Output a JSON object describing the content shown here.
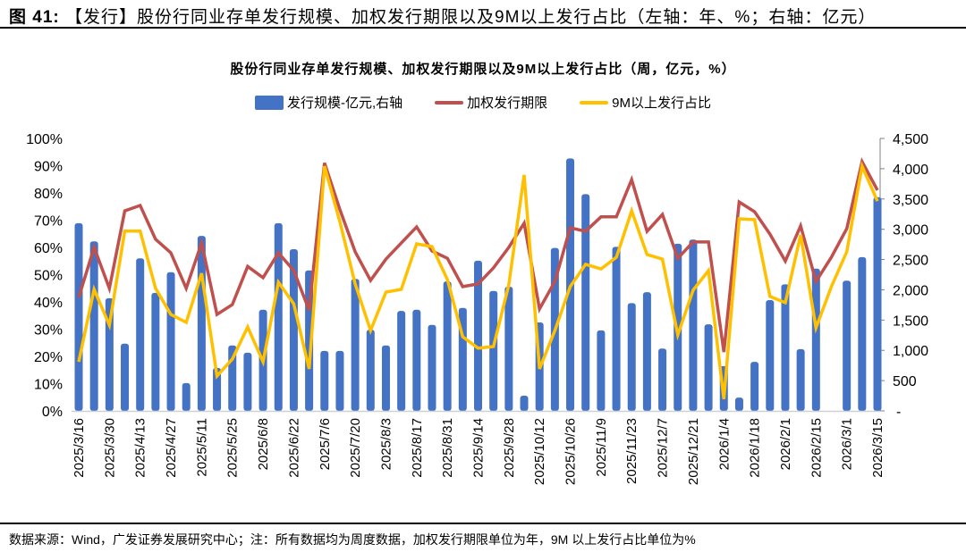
{
  "figure": {
    "number_label": "图 41:",
    "title": "【发行】股份行同业存单发行规模、加权发行期限以及9M以上发行占比（左轴：年、%；右轴：亿元）"
  },
  "source_note": "数据来源：Wind，广发证券发展研究中心；注：所有数据均为周度数据，加权发行期限单位为年，9M 以上发行占比单位为%",
  "chart_data": {
    "type": "bar+line",
    "title": "股份行同业存单发行规模、加权发行期限以及9M以上发行占比（周，亿元，%）",
    "legend_position": "top",
    "legend": [
      "发行规模-亿元,右轴",
      "加权发行期限",
      "9M以上发行占比"
    ],
    "colors": {
      "bars": "#4472C4",
      "red": "#C0504D",
      "yellow": "#FFC000"
    },
    "left_axis": {
      "ylim": [
        0,
        100
      ],
      "ticks": [
        "0%",
        "10%",
        "20%",
        "30%",
        "40%",
        "50%",
        "60%",
        "70%",
        "80%",
        "90%",
        "100%"
      ]
    },
    "right_axis": {
      "ylim": [
        0,
        4500
      ],
      "ticks": [
        "-",
        "500",
        "1,000",
        "1,500",
        "2,000",
        "2,500",
        "3,000",
        "3,500",
        "4,000",
        "4,500"
      ]
    },
    "x_tick_labels": [
      "2025/3/16",
      "2025/3/30",
      "2025/4/13",
      "2025/4/27",
      "2025/5/11",
      "2025/5/25",
      "2025/6/8",
      "2025/6/22",
      "2025/7/6",
      "2025/7/20",
      "2025/8/3",
      "2025/8/17",
      "2025/8/31",
      "2025/9/14",
      "2025/9/28",
      "2025/10/12",
      "2025/10/26",
      "2025/11/9",
      "2025/11/23",
      "2025/12/7",
      "2025/12/21",
      "2026/1/4",
      "2026/1/18",
      "2026/2/1",
      "2026/2/15",
      "2026/3/1",
      "2026/3/15"
    ],
    "n_weeks": 53,
    "series": [
      {
        "name": "发行规模-亿元,右轴",
        "axis": "right",
        "kind": "bar",
        "values": [
          3100,
          2800,
          1860,
          1110,
          2520,
          1950,
          2290,
          460,
          2890,
          710,
          1080,
          960,
          1670,
          3100,
          2670,
          2320,
          990,
          990,
          2180,
          1340,
          1080,
          1650,
          1670,
          1420,
          2140,
          1700,
          2480,
          1980,
          2050,
          250,
          1460,
          2690,
          4170,
          3580,
          1330,
          2710,
          1780,
          1960,
          1030,
          2760,
          2830,
          1430,
          740,
          220,
          810,
          1830,
          2090,
          1020,
          2350,
          0,
          2150,
          2540,
          3530
        ]
      },
      {
        "name": "加权发行期限",
        "axis": "left",
        "kind": "line",
        "values": [
          41.6,
          60,
          45,
          73.4,
          75.4,
          63,
          58,
          45,
          61.6,
          35.4,
          39,
          53,
          48.9,
          58,
          51.5,
          37,
          91,
          74,
          58.4,
          47.9,
          55.7,
          61.6,
          67.5,
          58.7,
          56,
          45.6,
          46.6,
          52.5,
          60,
          68.9,
          37.4,
          47.5,
          67.2,
          65.9,
          71.2,
          71.2,
          84.9,
          65.9,
          72.1,
          56,
          62,
          62,
          21.6,
          76.7,
          73.1,
          64.9,
          55,
          67.9,
          47.5,
          56.4,
          66.9,
          91.5,
          81
        ]
      },
      {
        "name": "9M以上发行占比",
        "axis": "left",
        "kind": "line",
        "values": [
          18,
          44.6,
          31.5,
          66,
          66,
          45,
          35.4,
          32.5,
          50.5,
          12.8,
          19,
          30.8,
          18,
          47.2,
          39.3,
          15.4,
          89.8,
          69.5,
          46.6,
          29.5,
          43.6,
          44.6,
          61.3,
          60.3,
          48.2,
          27.2,
          23,
          23.6,
          46.2,
          86.6,
          15.4,
          29.5,
          45.6,
          53.8,
          52.1,
          56.4,
          73.4,
          57.4,
          55.7,
          27.9,
          44.3,
          51.5,
          4.3,
          70.5,
          70.2,
          42,
          39.7,
          64.6,
          30.5,
          45.6,
          58.4,
          89.8,
          77
        ]
      }
    ]
  }
}
